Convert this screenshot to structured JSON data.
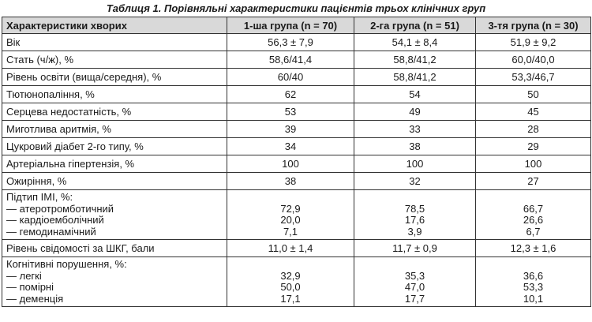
{
  "title": "Таблиця 1. Порівняльні характеристики пацієнтів трьох клінічних груп",
  "headers": [
    "Характеристики хворих",
    "1-ша група (n = 70)",
    "2-га група (n = 51)",
    "3-тя група (n = 30)"
  ],
  "rows": [
    {
      "label": [
        "Вік"
      ],
      "v1": [
        "56,3 ± 7,9"
      ],
      "v2": [
        "54,1 ± 8,4"
      ],
      "v3": [
        "51,9 ± 9,2"
      ]
    },
    {
      "label": [
        "Стать (ч/ж), %"
      ],
      "v1": [
        "58,6/41,4"
      ],
      "v2": [
        "58,8/41,2"
      ],
      "v3": [
        "60,0/40,0"
      ]
    },
    {
      "label": [
        "Рівень освіти (вища/середня), %"
      ],
      "v1": [
        "60/40"
      ],
      "v2": [
        "58,8/41,2"
      ],
      "v3": [
        "53,3/46,7"
      ]
    },
    {
      "label": [
        "Тютюнопаління, %"
      ],
      "v1": [
        "62"
      ],
      "v2": [
        "54"
      ],
      "v3": [
        "50"
      ]
    },
    {
      "label": [
        "Серцева недостатність, %"
      ],
      "v1": [
        "53"
      ],
      "v2": [
        "49"
      ],
      "v3": [
        "45"
      ]
    },
    {
      "label": [
        "Миготлива аритмія, %"
      ],
      "v1": [
        "39"
      ],
      "v2": [
        "33"
      ],
      "v3": [
        "28"
      ]
    },
    {
      "label": [
        "Цукровий діабет 2-го типу, %"
      ],
      "v1": [
        "34"
      ],
      "v2": [
        "38"
      ],
      "v3": [
        "29"
      ]
    },
    {
      "label": [
        "Артеріальна гіпертензія, %"
      ],
      "v1": [
        "100"
      ],
      "v2": [
        "100"
      ],
      "v3": [
        "100"
      ]
    },
    {
      "label": [
        "Ожиріння, %"
      ],
      "v1": [
        "38"
      ],
      "v2": [
        "32"
      ],
      "v3": [
        "27"
      ]
    },
    {
      "label": [
        "Підтип ІМІ, %:",
        "— атеротромботичний",
        "— кардіоемболічний",
        "— гемодинамічний"
      ],
      "v1": [
        "",
        "72,9",
        "20,0",
        "7,1"
      ],
      "v2": [
        "",
        "78,5",
        "17,6",
        "3,9"
      ],
      "v3": [
        "",
        "66,7",
        "26,6",
        "6,7"
      ]
    },
    {
      "label": [
        "Рівень свідомості за ШКГ, бали"
      ],
      "v1": [
        "11,0 ± 1,4"
      ],
      "v2": [
        "11,7 ± 0,9"
      ],
      "v3": [
        "12,3 ± 1,6"
      ]
    },
    {
      "label": [
        "Когнітивні порушення, %:",
        "— легкі",
        "— помірні",
        "— деменція"
      ],
      "v1": [
        "",
        "32,9",
        "50,0",
        "17,1"
      ],
      "v2": [
        "",
        "35,3",
        "47,0",
        "17,7"
      ],
      "v3": [
        "",
        "36,6",
        "53,3",
        "10,1"
      ]
    }
  ]
}
